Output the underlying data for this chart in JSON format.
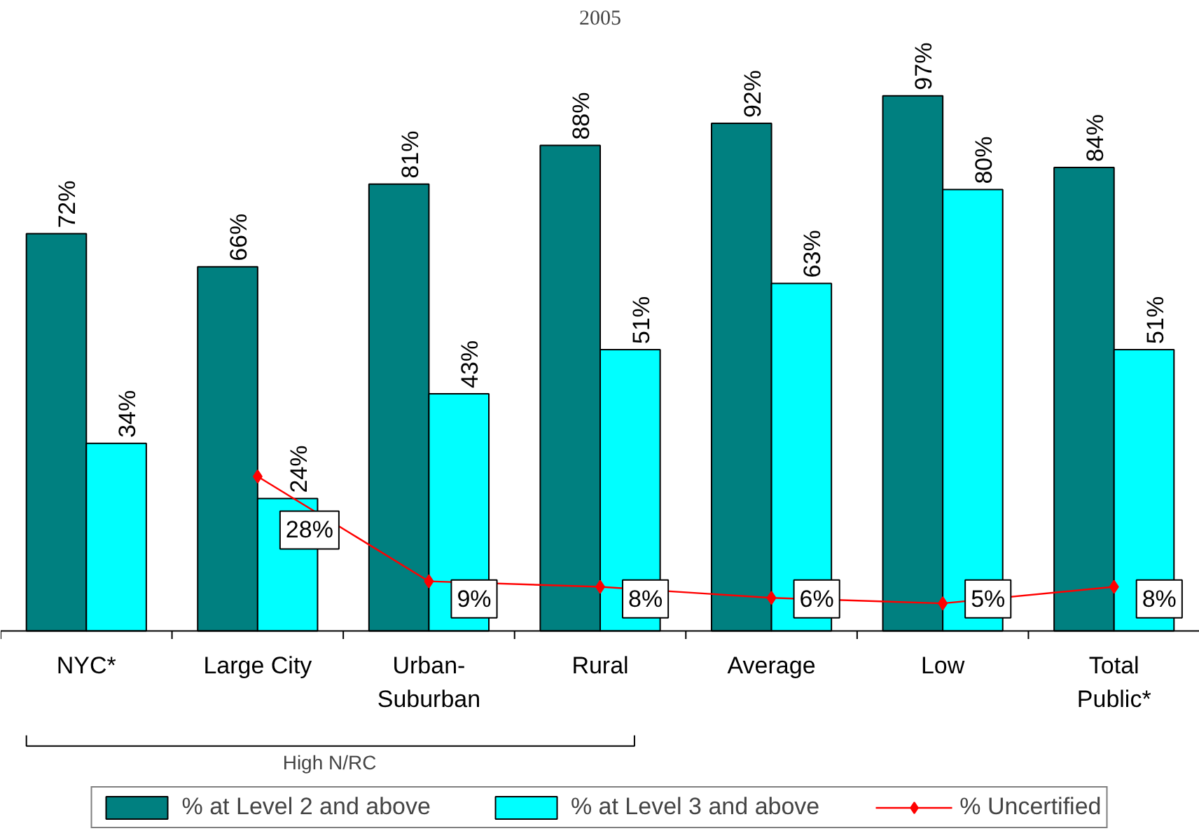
{
  "chart_data": {
    "type": "bar",
    "title": "2005",
    "categories": [
      "NYC*",
      "Large City",
      "Urban-\nSuburban",
      "Rural",
      "Average",
      "Low",
      "Total\nPublic*"
    ],
    "series": [
      {
        "name": "% at Level 2 and above",
        "color": "#008080",
        "values": [
          72,
          66,
          81,
          88,
          92,
          97,
          84
        ],
        "value_labels": [
          "72%",
          "66%",
          "81%",
          "88%",
          "92%",
          "97%",
          "84%"
        ]
      },
      {
        "name": "% at Level 3 and above",
        "color": "#00ffff",
        "values": [
          34,
          24,
          43,
          51,
          63,
          80,
          51
        ],
        "value_labels": [
          "34%",
          "24%",
          "43%",
          "51%",
          "63%",
          "80%",
          "51%"
        ]
      },
      {
        "name": "% Uncertified",
        "type": "line",
        "color": "#ff0000",
        "marker": "diamond",
        "values": [
          null,
          28,
          9,
          8,
          6,
          5,
          8
        ],
        "value_labels": [
          null,
          "28%",
          "9%",
          "8%",
          "6%",
          "5%",
          "8%"
        ]
      }
    ],
    "annotations": [
      "High N/RC"
    ],
    "grid": false,
    "legend": "bottom"
  }
}
